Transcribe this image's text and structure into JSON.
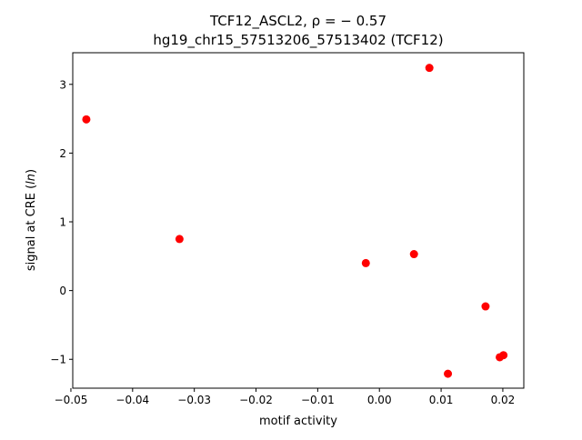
{
  "chart_data": {
    "type": "scatter",
    "title_line1": "TCF12_ASCL2, ρ = − 0.57",
    "title_line2": "hg19_chr15_57513206_57513402 (TCF12)",
    "xlabel": "motif activity",
    "ylabel_main": "signal at CRE (",
    "ylabel_italic": "ln",
    "ylabel_end": ")",
    "xlim": [
      -0.0497,
      0.0234
    ],
    "ylim": [
      -1.42,
      3.46
    ],
    "xticks": [
      -0.05,
      -0.04,
      -0.03,
      -0.02,
      -0.01,
      0.0,
      0.01,
      0.02
    ],
    "xtick_labels": [
      "−0.05",
      "−0.04",
      "−0.03",
      "−0.02",
      "−0.01",
      "0.00",
      "0.01",
      "0.02"
    ],
    "yticks": [
      -1,
      0,
      1,
      2,
      3
    ],
    "ytick_labels": [
      "−1",
      "0",
      "1",
      "2",
      "3"
    ],
    "grid": false,
    "marker_color": "#ff0000",
    "points": [
      {
        "x": -0.0475,
        "y": 2.49
      },
      {
        "x": -0.0324,
        "y": 0.75
      },
      {
        "x": -0.0022,
        "y": 0.4
      },
      {
        "x": 0.0056,
        "y": 0.53
      },
      {
        "x": 0.0081,
        "y": 3.24
      },
      {
        "x": 0.0111,
        "y": -1.21
      },
      {
        "x": 0.0172,
        "y": -0.23
      },
      {
        "x": 0.0195,
        "y": -0.97
      },
      {
        "x": 0.0201,
        "y": -0.94
      }
    ]
  }
}
